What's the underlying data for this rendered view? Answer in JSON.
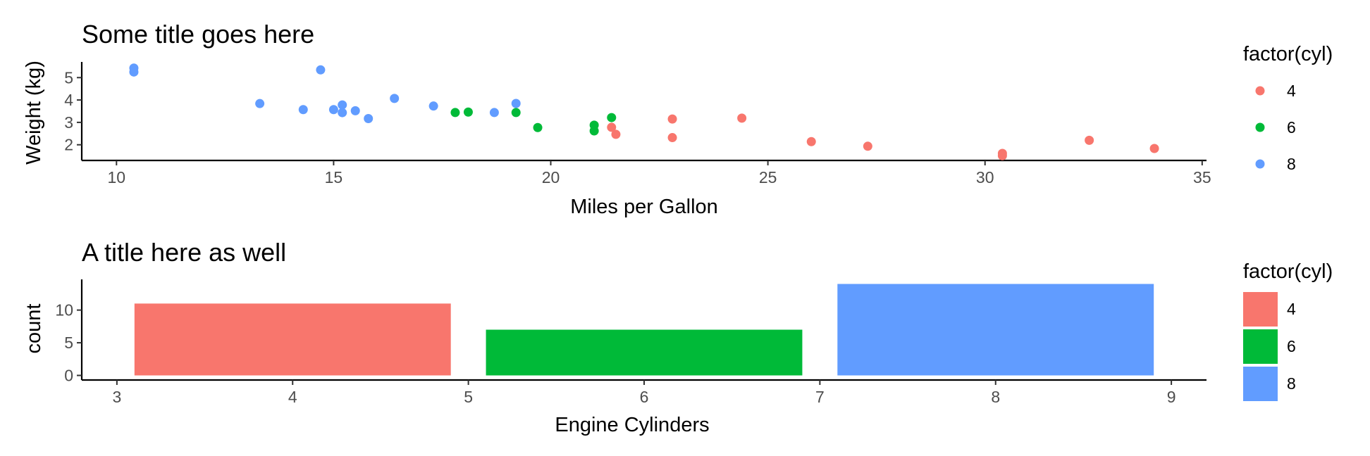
{
  "chart_data": [
    {
      "type": "scatter",
      "title": "Some title goes here",
      "xlabel": "Miles per Gallon",
      "ylabel": "Weight (kg)",
      "xlim": [
        9.2,
        35.1
      ],
      "ylim": [
        1.3,
        5.7
      ],
      "xticks": [
        "10",
        "15",
        "20",
        "25",
        "30",
        "35"
      ],
      "yticks": [
        "2",
        "3",
        "4",
        "5"
      ],
      "legend": {
        "title": "factor(cyl)",
        "placement": "right",
        "entries": [
          "4",
          "6",
          "8"
        ]
      },
      "colors": {
        "4": "#F8766D",
        "6": "#00BA38",
        "8": "#619CFF"
      },
      "series": [
        {
          "name": "4",
          "points": [
            [
              22.8,
              2.32
            ],
            [
              24.4,
              3.19
            ],
            [
              22.8,
              3.15
            ],
            [
              32.4,
              2.2
            ],
            [
              30.4,
              1.615
            ],
            [
              33.9,
              1.835
            ],
            [
              21.5,
              2.465
            ],
            [
              27.3,
              1.935
            ],
            [
              26.0,
              2.14
            ],
            [
              30.4,
              1.513
            ],
            [
              21.4,
              2.78
            ]
          ]
        },
        {
          "name": "6",
          "points": [
            [
              21.0,
              2.62
            ],
            [
              21.0,
              2.875
            ],
            [
              21.4,
              3.215
            ],
            [
              18.1,
              3.46
            ],
            [
              19.2,
              3.44
            ],
            [
              17.8,
              3.44
            ],
            [
              19.7,
              2.77
            ]
          ]
        },
        {
          "name": "8",
          "points": [
            [
              18.7,
              3.44
            ],
            [
              14.3,
              3.57
            ],
            [
              16.4,
              4.07
            ],
            [
              17.3,
              3.73
            ],
            [
              15.2,
              3.78
            ],
            [
              10.4,
              5.25
            ],
            [
              10.4,
              5.424
            ],
            [
              14.7,
              5.345
            ],
            [
              15.5,
              3.52
            ],
            [
              15.2,
              3.435
            ],
            [
              13.3,
              3.84
            ],
            [
              19.2,
              3.845
            ],
            [
              15.8,
              3.17
            ],
            [
              15.0,
              3.57
            ]
          ]
        }
      ]
    },
    {
      "type": "bar",
      "title": "A title here as well",
      "xlabel": "Engine Cylinders",
      "ylabel": "count",
      "xlim": [
        2.8,
        9.2
      ],
      "ylim": [
        -0.7,
        14.7
      ],
      "xticks": [
        "3",
        "4",
        "5",
        "6",
        "7",
        "8",
        "9"
      ],
      "yticks": [
        "0",
        "5",
        "10"
      ],
      "categories": [
        "4",
        "6",
        "8"
      ],
      "x": [
        4,
        6,
        8
      ],
      "values": [
        11,
        7,
        14
      ],
      "legend": {
        "title": "factor(cyl)",
        "placement": "right",
        "entries": [
          "4",
          "6",
          "8"
        ]
      },
      "colors": {
        "4": "#F8766D",
        "6": "#00BA38",
        "8": "#619CFF"
      }
    }
  ]
}
